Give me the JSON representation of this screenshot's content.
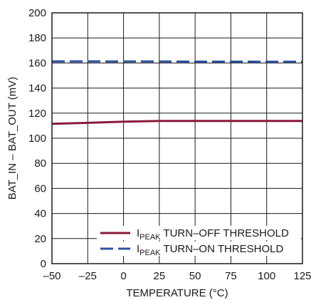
{
  "chart_data": {
    "type": "line",
    "xlabel": "TEMPERATURE (°C)",
    "ylabel": "BAT_IN – BAT_OUT (mV)",
    "xlim": [
      -50,
      125
    ],
    "ylim": [
      0,
      200
    ],
    "x_ticks": [
      -50,
      -25,
      0,
      25,
      50,
      75,
      100,
      125
    ],
    "y_ticks": [
      0,
      20,
      40,
      60,
      80,
      100,
      120,
      140,
      160,
      180,
      200
    ],
    "x_tick_labels": [
      "–50",
      "–25",
      "0",
      "25",
      "50",
      "75",
      "100",
      "125"
    ],
    "y_tick_labels": [
      "0",
      "20",
      "40",
      "60",
      "80",
      "100",
      "120",
      "140",
      "160",
      "180",
      "200"
    ],
    "grid": true,
    "legend_position": "bottom-right",
    "series": [
      {
        "name": "I_PEAK TURN–OFF THRESHOLD",
        "legend_main": "I",
        "legend_sub": "PEAK",
        "legend_rest": " TURN–OFF THRESHOLD",
        "color": "#8b1a3a",
        "style": "solid",
        "x": [
          -50,
          -25,
          0,
          25,
          50,
          75,
          100,
          125
        ],
        "y": [
          111.5,
          112.3,
          113.2,
          113.8,
          113.8,
          113.8,
          113.8,
          113.8
        ]
      },
      {
        "name": "I_PEAK TURN–ON THRESHOLD",
        "legend_main": "I",
        "legend_sub": "PEAK",
        "legend_rest": " TURN–ON THRESHOLD",
        "color": "#2f4fa0",
        "style": "dashed",
        "x": [
          -50,
          -25,
          0,
          25,
          50,
          75,
          100,
          125
        ],
        "y": [
          161.3,
          161.3,
          161.2,
          161.2,
          161.1,
          161.1,
          161.0,
          161.0
        ]
      }
    ]
  }
}
